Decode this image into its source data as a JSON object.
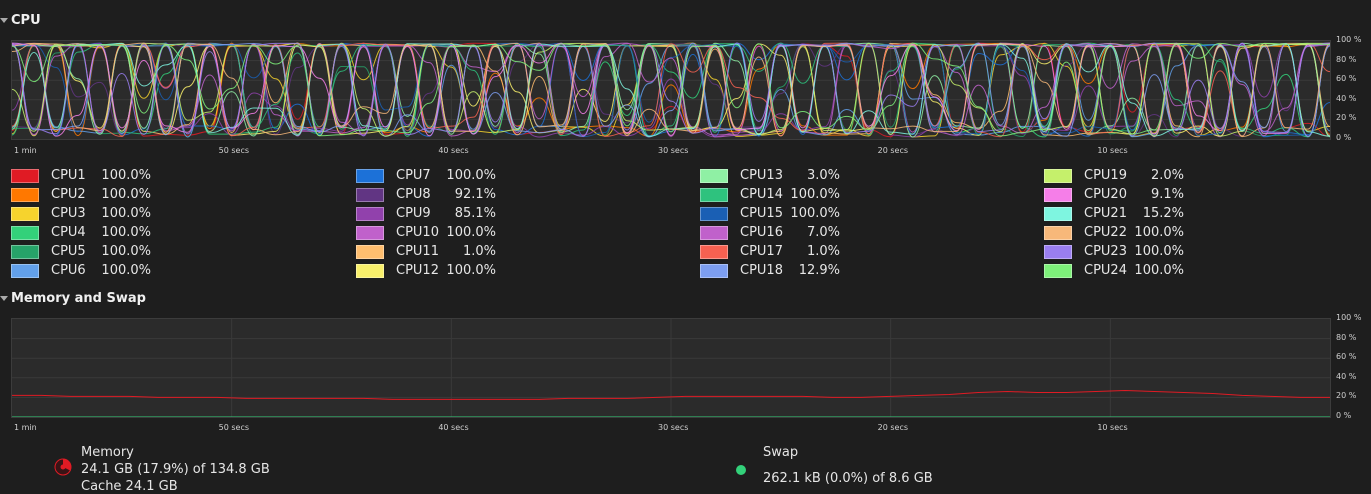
{
  "cpu_section": {
    "title": "CPU"
  },
  "memory_section": {
    "title": "Memory and Swap"
  },
  "y_axis_labels": [
    "100 %",
    "80 %",
    "60 %",
    "40 %",
    "20 %",
    "0 %"
  ],
  "x_axis_labels": [
    "1 min",
    "50 secs",
    "40 secs",
    "30 secs",
    "20 secs",
    "10 secs"
  ],
  "cpus": [
    {
      "name": "CPU1",
      "value": "100.0%",
      "color": "#e01b24"
    },
    {
      "name": "CPU2",
      "value": "100.0%",
      "color": "#ff7800"
    },
    {
      "name": "CPU3",
      "value": "100.0%",
      "color": "#f6d32d"
    },
    {
      "name": "CPU4",
      "value": "100.0%",
      "color": "#33d17a"
    },
    {
      "name": "CPU5",
      "value": "100.0%",
      "color": "#26a269"
    },
    {
      "name": "CPU6",
      "value": "100.0%",
      "color": "#62a0ea"
    },
    {
      "name": "CPU7",
      "value": "100.0%",
      "color": "#1c71d8"
    },
    {
      "name": "CPU8",
      "value": "92.1%",
      "color": "#613583"
    },
    {
      "name": "CPU9",
      "value": "85.1%",
      "color": "#9141ac"
    },
    {
      "name": "CPU10",
      "value": "100.0%",
      "color": "#c061cb"
    },
    {
      "name": "CPU11",
      "value": "1.0%",
      "color": "#ffbe6f"
    },
    {
      "name": "CPU12",
      "value": "100.0%",
      "color": "#f9f06b"
    },
    {
      "name": "CPU13",
      "value": "3.0%",
      "color": "#8ff0a4"
    },
    {
      "name": "CPU14",
      "value": "100.0%",
      "color": "#2ec27e"
    },
    {
      "name": "CPU15",
      "value": "100.0%",
      "color": "#1a5fb4"
    },
    {
      "name": "CPU16",
      "value": "7.0%",
      "color": "#c061cb"
    },
    {
      "name": "CPU17",
      "value": "1.0%",
      "color": "#f66151"
    },
    {
      "name": "CPU18",
      "value": "12.9%",
      "color": "#7d9ef0"
    },
    {
      "name": "CPU19",
      "value": "2.0%",
      "color": "#c5f06b"
    },
    {
      "name": "CPU20",
      "value": "9.1%",
      "color": "#f57ee8"
    },
    {
      "name": "CPU21",
      "value": "15.2%",
      "color": "#7ef5e0"
    },
    {
      "name": "CPU22",
      "value": "100.0%",
      "color": "#f7b87a"
    },
    {
      "name": "CPU23",
      "value": "100.0%",
      "color": "#9a7ef0"
    },
    {
      "name": "CPU24",
      "value": "100.0%",
      "color": "#7ef07a"
    }
  ],
  "memory": {
    "label": "Memory",
    "usage": "24.1 GB (17.9%) of 134.8 GB",
    "cache": "Cache 24.1 GB",
    "color": "#e01b24",
    "history_percent": [
      22,
      22,
      21,
      21,
      21,
      20,
      20,
      20,
      19,
      19,
      19,
      19,
      19,
      18,
      18,
      18,
      18,
      18,
      18,
      19,
      19,
      19,
      20,
      21,
      21,
      21,
      21,
      21,
      20,
      20,
      21,
      22,
      23,
      25,
      26,
      25,
      25,
      26,
      27,
      26,
      25,
      24,
      22,
      21,
      20,
      20
    ]
  },
  "swap": {
    "label": "Swap",
    "usage": "262.1 kB (0.0%) of 8.6 GB",
    "color": "#33d17a",
    "history_percent": [
      0,
      0
    ]
  }
}
